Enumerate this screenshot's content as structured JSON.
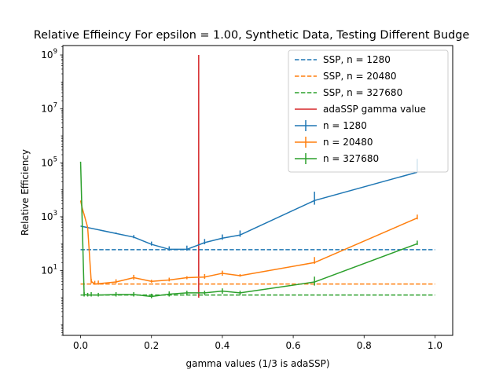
{
  "chart_data": {
    "type": "line",
    "title": "Relative Effieincy For epsilon = 1.00, Synthetic Data, Testing Different Budge",
    "xlabel": "gamma values (1/3 is adaSSP)",
    "ylabel": "Relative Efficiency",
    "xlim": [
      -0.05,
      1.05
    ],
    "ylim_log10": [
      -1.4,
      9.35
    ],
    "yscale": "log",
    "x_ticks": [
      0.0,
      0.2,
      0.4,
      0.6,
      0.8,
      1.0
    ],
    "x_tick_labels": [
      "0.0",
      "0.2",
      "0.4",
      "0.6",
      "0.8",
      "1.0"
    ],
    "y_ticks_log10": [
      1,
      3,
      5,
      7,
      9
    ],
    "y_tick_labels": [
      {
        "base": "10",
        "exp": "1"
      },
      {
        "base": "10",
        "exp": "3"
      },
      {
        "base": "10",
        "exp": "5"
      },
      {
        "base": "10",
        "exp": "7"
      },
      {
        "base": "10",
        "exp": "9"
      }
    ],
    "grid": false,
    "legend_position": "upper-right",
    "hlines": [
      {
        "name": "SSP, n = 1280",
        "y": 60,
        "x_range": [
          0.0,
          1.0
        ],
        "color": "#1f77b4"
      },
      {
        "name": "SSP, n = 20480",
        "y": 3.2,
        "x_range": [
          0.0,
          1.0
        ],
        "color": "#ff7f0e"
      },
      {
        "name": "SSP, n = 327680",
        "y": 1.25,
        "x_range": [
          0.0,
          1.0
        ],
        "color": "#2ca02c"
      }
    ],
    "vline": {
      "name": "adaSSP gamma value",
      "x": 0.3333,
      "y_range": [
        1.0,
        1000000000
      ],
      "color": "#d62728"
    },
    "series": [
      {
        "name": "n = 1280",
        "color": "#1f77b4",
        "x": [
          0.0,
          0.1,
          0.15,
          0.2,
          0.25,
          0.3,
          0.35,
          0.4,
          0.45,
          0.66,
          0.95
        ],
        "y": [
          450,
          240,
          175,
          95,
          62,
          62,
          110,
          160,
          210,
          4000,
          45000
        ],
        "err_top": [
          450,
          260,
          210,
          120,
          80,
          85,
          150,
          220,
          310,
          8500,
          140000
        ],
        "err_bottom": [
          450,
          230,
          160,
          85,
          55,
          55,
          95,
          140,
          180,
          2800,
          45000
        ]
      },
      {
        "name": "n = 20480",
        "color": "#ff7f0e",
        "x": [
          0.0,
          0.005,
          0.01,
          0.02,
          0.03,
          0.04,
          0.05,
          0.1,
          0.15,
          0.2,
          0.25,
          0.3,
          0.35,
          0.4,
          0.45,
          0.66,
          0.95
        ],
        "y": [
          4000,
          2000,
          1200,
          400,
          4.0,
          3.2,
          3.3,
          3.8,
          5.5,
          4.0,
          4.5,
          5.5,
          5.8,
          8.0,
          6.5,
          20,
          900
        ],
        "err_top": [
          4000,
          2000,
          1200,
          400,
          5.0,
          4.2,
          4.3,
          4.8,
          7.0,
          4.6,
          5.5,
          6.2,
          7.5,
          10,
          7.5,
          32,
          1200
        ],
        "err_bottom": [
          4000,
          2000,
          1200,
          400,
          3.4,
          3.0,
          3.0,
          3.4,
          4.6,
          3.6,
          4.0,
          4.8,
          5.0,
          6.5,
          6.0,
          18,
          800
        ]
      },
      {
        "name": "n = 327680",
        "color": "#2ca02c",
        "x": [
          0.0,
          0.01,
          0.02,
          0.03,
          0.05,
          0.1,
          0.15,
          0.2,
          0.25,
          0.3,
          0.35,
          0.4,
          0.45,
          0.66,
          0.95
        ],
        "y": [
          110000,
          1.3,
          1.25,
          1.25,
          1.25,
          1.3,
          1.3,
          1.1,
          1.35,
          1.5,
          1.5,
          1.75,
          1.5,
          3.8,
          100
        ],
        "err_top": [
          110000,
          1.6,
          1.5,
          1.6,
          1.5,
          1.6,
          1.6,
          1.4,
          1.7,
          1.8,
          1.8,
          2.2,
          1.8,
          6.0,
          130
        ],
        "err_bottom": [
          110000,
          1.1,
          1.1,
          1.1,
          1.1,
          1.1,
          1.1,
          0.95,
          1.1,
          1.25,
          1.25,
          1.4,
          1.25,
          2.8,
          90
        ]
      }
    ]
  }
}
